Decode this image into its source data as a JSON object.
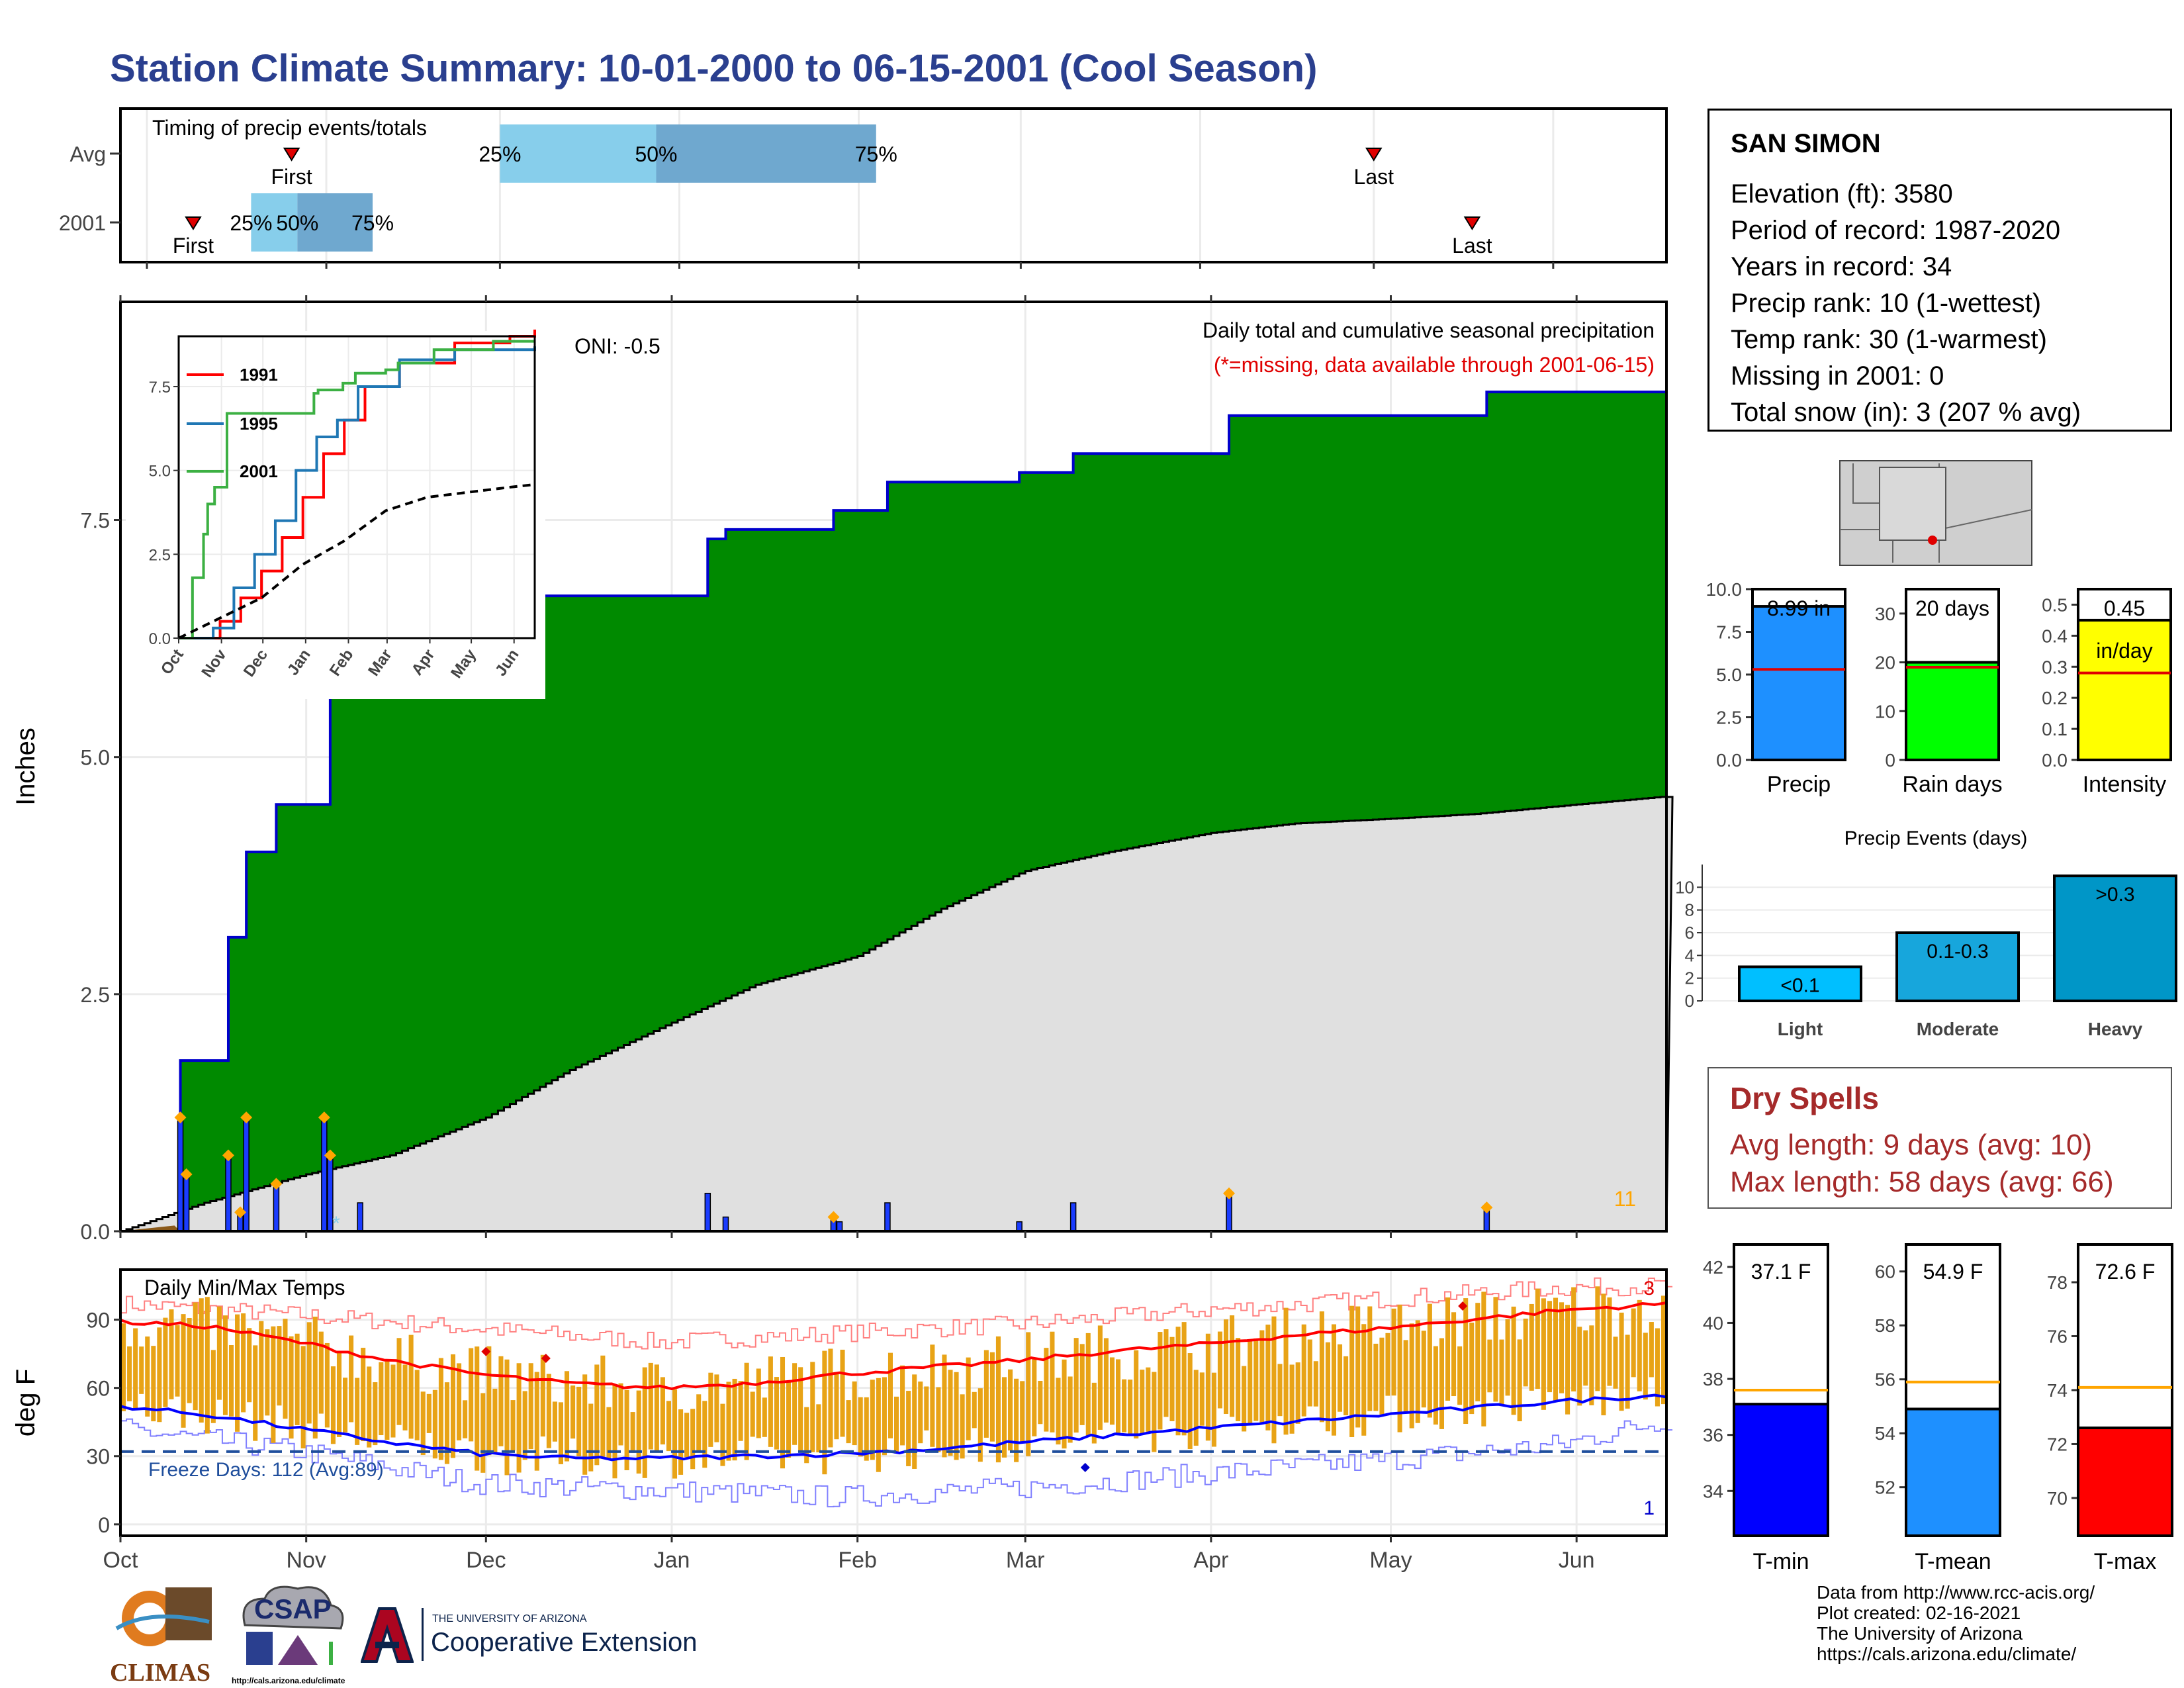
{
  "page": {
    "title": "Station Climate Summary: 10-01-2000 to 06-15-2001 (Cool Season)"
  },
  "station": {
    "name": "SAN SIMON",
    "lines": [
      "Elevation (ft): 3580",
      "Period of record: 1987-2020",
      "Years in record: 34",
      "Precip rank: 10 (1-wettest)",
      "Temp rank: 30 (1-warmest)",
      "Missing in 2001: 0",
      "Total snow (in): 3 (207 % avg)"
    ]
  },
  "dry_spells": {
    "title": "Dry Spells",
    "avg_length": "Avg length: 9 days (avg: 10)",
    "max_length": "Max length: 58 days (avg: 66)"
  },
  "credits": [
    "Data from http://www.rcc-acis.org/",
    "Plot created: 02-16-2021",
    "The University of Arizona",
    "https://cals.arizona.edu/climate/"
  ],
  "logos": {
    "climas": "CLIMAS",
    "csap": "CSAP",
    "csap_url": "http://cals.arizona.edu/climate",
    "ua_small": "THE UNIVERSITY OF ARIZONA",
    "ua_big": "Cooperative Extension"
  },
  "colors": {
    "title": "#2a3f8f",
    "cumulative_fill": "#008a00",
    "climatology_fill": "#e0e0e0",
    "daily_bar": "#1a3cff",
    "temp_bar": "#e8a316",
    "tmax_line": "#ff0000",
    "tmin_line": "#0000ff",
    "dry_spells": "#a52a2a"
  },
  "chart_data": [
    {
      "id": "timing",
      "type": "bar",
      "title": "Timing of precip events/totals",
      "categories": [
        "Avg",
        "2001"
      ],
      "rows": [
        {
          "label": "Avg",
          "first": "2000-10-26",
          "last": "2001-05-01",
          "p25": "2000-12-01",
          "p50": "2000-12-28",
          "p75": "2001-02-04"
        },
        {
          "label": "2001",
          "first": "2000-10-09",
          "last": "2001-05-18",
          "p25": "2000-10-19",
          "p50": "2000-10-27",
          "p75": "2000-11-09"
        }
      ],
      "first_label": "First",
      "last_label": "Last",
      "pct_labels": [
        "25%",
        "50%",
        "75%"
      ]
    },
    {
      "id": "precip",
      "type": "area",
      "title": "Daily total and cumulative seasonal precipitation",
      "subtitle": "(*=missing, data available through 2001-06-15)",
      "ylabel": "Inches",
      "ylim": [
        0,
        9.8
      ],
      "yticks": [
        0.0,
        2.5,
        5.0,
        7.5
      ],
      "x_month_labels": [
        "Oct",
        "Nov",
        "Dec",
        "Jan",
        "Feb",
        "Mar",
        "Apr",
        "May",
        "Jun"
      ],
      "oni": "ONI: -0.5",
      "count_label": "11",
      "cumulative_steps": [
        [
          "2000-10-01",
          0.0
        ],
        [
          "2000-10-11",
          1.8
        ],
        [
          "2000-10-19",
          3.1
        ],
        [
          "2000-10-22",
          4.0
        ],
        [
          "2000-10-27",
          4.5
        ],
        [
          "2000-11-05",
          6.7
        ],
        [
          "2001-01-07",
          7.3
        ],
        [
          "2001-01-10",
          7.4
        ],
        [
          "2001-01-28",
          7.6
        ],
        [
          "2001-02-06",
          7.9
        ],
        [
          "2001-02-28",
          8.0
        ],
        [
          "2001-03-09",
          8.2
        ],
        [
          "2001-04-04",
          8.6
        ],
        [
          "2001-05-17",
          8.85
        ],
        [
          "2001-06-15",
          8.85
        ]
      ],
      "climatology_cumulative": [
        [
          "2000-10-01",
          0.0
        ],
        [
          "2000-10-15",
          0.3
        ],
        [
          "2000-11-01",
          0.6
        ],
        [
          "2000-11-15",
          0.8
        ],
        [
          "2000-12-01",
          1.2
        ],
        [
          "2000-12-15",
          1.7
        ],
        [
          "2001-01-01",
          2.2
        ],
        [
          "2001-01-15",
          2.6
        ],
        [
          "2001-02-01",
          2.9
        ],
        [
          "2001-02-15",
          3.4
        ],
        [
          "2001-03-01",
          3.8
        ],
        [
          "2001-03-15",
          4.0
        ],
        [
          "2001-04-01",
          4.2
        ],
        [
          "2001-04-15",
          4.3
        ],
        [
          "2001-05-01",
          4.35
        ],
        [
          "2001-05-15",
          4.4
        ],
        [
          "2001-06-01",
          4.5
        ],
        [
          "2001-06-15",
          4.58
        ]
      ],
      "daily_totals": [
        [
          "2000-10-11",
          1.2
        ],
        [
          "2000-10-12",
          0.6
        ],
        [
          "2000-10-19",
          0.8
        ],
        [
          "2000-10-21",
          0.2
        ],
        [
          "2000-10-22",
          1.2
        ],
        [
          "2000-10-27",
          0.5
        ],
        [
          "2000-11-04",
          1.2
        ],
        [
          "2000-11-05",
          0.8
        ],
        [
          "2000-11-10",
          0.3
        ],
        [
          "2001-01-07",
          0.4
        ],
        [
          "2001-01-10",
          0.15
        ],
        [
          "2001-01-28",
          0.15
        ],
        [
          "2001-01-29",
          0.1
        ],
        [
          "2001-02-06",
          0.3
        ],
        [
          "2001-02-28",
          0.1
        ],
        [
          "2001-03-09",
          0.3
        ],
        [
          "2001-04-04",
          0.4
        ],
        [
          "2001-05-17",
          0.25
        ]
      ],
      "extreme_markers": [
        [
          "2000-10-11",
          1.2
        ],
        [
          "2000-10-12",
          0.6
        ],
        [
          "2000-10-19",
          0.8
        ],
        [
          "2000-10-21",
          0.2
        ],
        [
          "2000-10-22",
          1.2
        ],
        [
          "2000-10-27",
          0.5
        ],
        [
          "2000-11-04",
          1.2
        ],
        [
          "2000-11-05",
          0.8
        ],
        [
          "2001-01-28",
          0.15
        ],
        [
          "2001-04-04",
          0.4
        ],
        [
          "2001-05-17",
          0.25
        ]
      ]
    },
    {
      "id": "inset",
      "type": "line",
      "ylim": [
        0,
        9.0
      ],
      "yticks": [
        0.0,
        2.5,
        5.0,
        7.5
      ],
      "x_month_labels": [
        "Oct",
        "Nov",
        "Dec",
        "Jan",
        "Feb",
        "Mar",
        "Apr",
        "May",
        "Jun"
      ],
      "series": [
        {
          "name": "1991",
          "color": "#ff0000",
          "points": [
            [
              0,
              0
            ],
            [
              30,
              0.5
            ],
            [
              45,
              1.2
            ],
            [
              60,
              2.0
            ],
            [
              75,
              3.0
            ],
            [
              90,
              4.2
            ],
            [
              105,
              5.5
            ],
            [
              120,
              6.5
            ],
            [
              135,
              7.5
            ],
            [
              160,
              8.2
            ],
            [
              200,
              8.8
            ],
            [
              240,
              9.0
            ],
            [
              258,
              9.2
            ]
          ]
        },
        {
          "name": "1995",
          "color": "#1f77b4",
          "points": [
            [
              0,
              0
            ],
            [
              25,
              0.3
            ],
            [
              40,
              1.5
            ],
            [
              55,
              2.5
            ],
            [
              70,
              3.5
            ],
            [
              85,
              5.0
            ],
            [
              100,
              6.0
            ],
            [
              115,
              6.5
            ],
            [
              130,
              7.5
            ],
            [
              160,
              8.3
            ],
            [
              200,
              8.6
            ],
            [
              258,
              8.7
            ]
          ]
        },
        {
          "name": "2001",
          "color": "#3cb043",
          "points": [
            [
              0,
              0
            ],
            [
              10,
              1.8
            ],
            [
              18,
              3.1
            ],
            [
              21,
              4.0
            ],
            [
              26,
              4.5
            ],
            [
              35,
              6.7
            ],
            [
              98,
              7.3
            ],
            [
              101,
              7.4
            ],
            [
              119,
              7.6
            ],
            [
              128,
              7.9
            ],
            [
              150,
              8.0
            ],
            [
              159,
              8.2
            ],
            [
              185,
              8.6
            ],
            [
              228,
              8.85
            ],
            [
              258,
              8.85
            ]
          ]
        },
        {
          "name": "Avg",
          "color": "#000000",
          "dashed": true,
          "points": [
            [
              0,
              0
            ],
            [
              30,
              0.6
            ],
            [
              60,
              1.2
            ],
            [
              90,
              2.2
            ],
            [
              120,
              2.9
            ],
            [
              150,
              3.8
            ],
            [
              180,
              4.2
            ],
            [
              210,
              4.35
            ],
            [
              240,
              4.5
            ],
            [
              258,
              4.58
            ]
          ]
        }
      ]
    },
    {
      "id": "summary_bars",
      "type": "bar",
      "panels": [
        {
          "label": "Precip",
          "value": 8.99,
          "value_label": "8.99 in",
          "avg": 5.3,
          "ylim": [
            0,
            10.0
          ],
          "yticks": [
            0.0,
            2.5,
            5.0,
            7.5,
            10.0
          ],
          "color": "#1e90ff"
        },
        {
          "label": "Rain days",
          "value": 20,
          "value_label": "20 days",
          "avg": 19,
          "ylim": [
            0,
            35
          ],
          "yticks": [
            0,
            10,
            20,
            30
          ],
          "color": "#00ff00"
        },
        {
          "label": "Intensity",
          "value": 0.45,
          "value_label": "0.45",
          "value_unit": "in/day",
          "avg": 0.28,
          "ylim": [
            0,
            0.55
          ],
          "yticks": [
            0.0,
            0.1,
            0.2,
            0.3,
            0.4,
            0.5
          ],
          "color": "#ffff00"
        }
      ]
    },
    {
      "id": "precip_events",
      "type": "bar",
      "title": "Precip Events (days)",
      "categories": [
        "Light",
        "Moderate",
        "Heavy"
      ],
      "values": [
        3,
        6,
        11
      ],
      "bar_labels": [
        "<0.1",
        "0.1-0.3",
        ">0.3"
      ],
      "ylim": [
        0,
        12
      ],
      "yticks": [
        0,
        2,
        4,
        6,
        8,
        10
      ]
    },
    {
      "id": "temps",
      "type": "line",
      "title": "Daily Min/Max Temps",
      "ylabel": "deg F",
      "ylim": [
        -5,
        112
      ],
      "yticks": [
        0,
        30,
        60,
        90
      ],
      "x_month_labels": [
        "Oct",
        "Nov",
        "Dec",
        "Jan",
        "Feb",
        "Mar",
        "Apr",
        "May",
        "Jun"
      ],
      "freeze_label": "Freeze Days: 112 (Avg:89)",
      "freeze_line": 32,
      "count_high": "3",
      "count_low": "1",
      "tmax_avg": [
        [
          0,
          89
        ],
        [
          15,
          87
        ],
        [
          30,
          80
        ],
        [
          45,
          72
        ],
        [
          60,
          66
        ],
        [
          75,
          62
        ],
        [
          90,
          60
        ],
        [
          105,
          62
        ],
        [
          120,
          66
        ],
        [
          135,
          69
        ],
        [
          150,
          72
        ],
        [
          165,
          76
        ],
        [
          180,
          79
        ],
        [
          195,
          83
        ],
        [
          210,
          86
        ],
        [
          225,
          90
        ],
        [
          240,
          94
        ],
        [
          258,
          97
        ]
      ],
      "tmin_avg": [
        [
          0,
          52
        ],
        [
          15,
          48
        ],
        [
          30,
          42
        ],
        [
          45,
          36
        ],
        [
          60,
          31
        ],
        [
          75,
          29
        ],
        [
          90,
          29
        ],
        [
          105,
          30
        ],
        [
          120,
          31
        ],
        [
          135,
          33
        ],
        [
          150,
          36
        ],
        [
          165,
          39
        ],
        [
          180,
          42
        ],
        [
          195,
          45
        ],
        [
          210,
          48
        ],
        [
          225,
          51
        ],
        [
          240,
          54
        ],
        [
          258,
          57
        ]
      ],
      "tmax_record": [
        [
          0,
          97
        ],
        [
          30,
          92
        ],
        [
          60,
          86
        ],
        [
          90,
          80
        ],
        [
          120,
          84
        ],
        [
          150,
          88
        ],
        [
          180,
          94
        ],
        [
          210,
          99
        ],
        [
          240,
          104
        ],
        [
          258,
          105
        ]
      ],
      "tmin_record": [
        [
          0,
          42
        ],
        [
          30,
          32
        ],
        [
          60,
          18
        ],
        [
          90,
          15
        ],
        [
          120,
          12
        ],
        [
          150,
          16
        ],
        [
          180,
          22
        ],
        [
          210,
          28
        ],
        [
          240,
          35
        ],
        [
          258,
          46
        ]
      ]
    },
    {
      "id": "temp_summary",
      "type": "bar",
      "panels": [
        {
          "label": "T-min",
          "value": 37.1,
          "value_label": "37.1 F",
          "avg": 37.6,
          "ylim": [
            32.4,
            42.8
          ],
          "yticks": [
            34,
            36,
            38,
            40,
            42
          ],
          "color": "#0000ff"
        },
        {
          "label": "T-mean",
          "value": 54.9,
          "value_label": "54.9 F",
          "avg": 55.9,
          "ylim": [
            50.2,
            61.0
          ],
          "yticks": [
            52,
            54,
            56,
            58,
            60
          ],
          "color": "#1e90ff"
        },
        {
          "label": "T-max",
          "value": 72.6,
          "value_label": "72.6 F",
          "avg": 74.1,
          "ylim": [
            68.6,
            79.4
          ],
          "yticks": [
            70,
            72,
            74,
            76,
            78
          ],
          "color": "#ff0000"
        }
      ]
    }
  ]
}
